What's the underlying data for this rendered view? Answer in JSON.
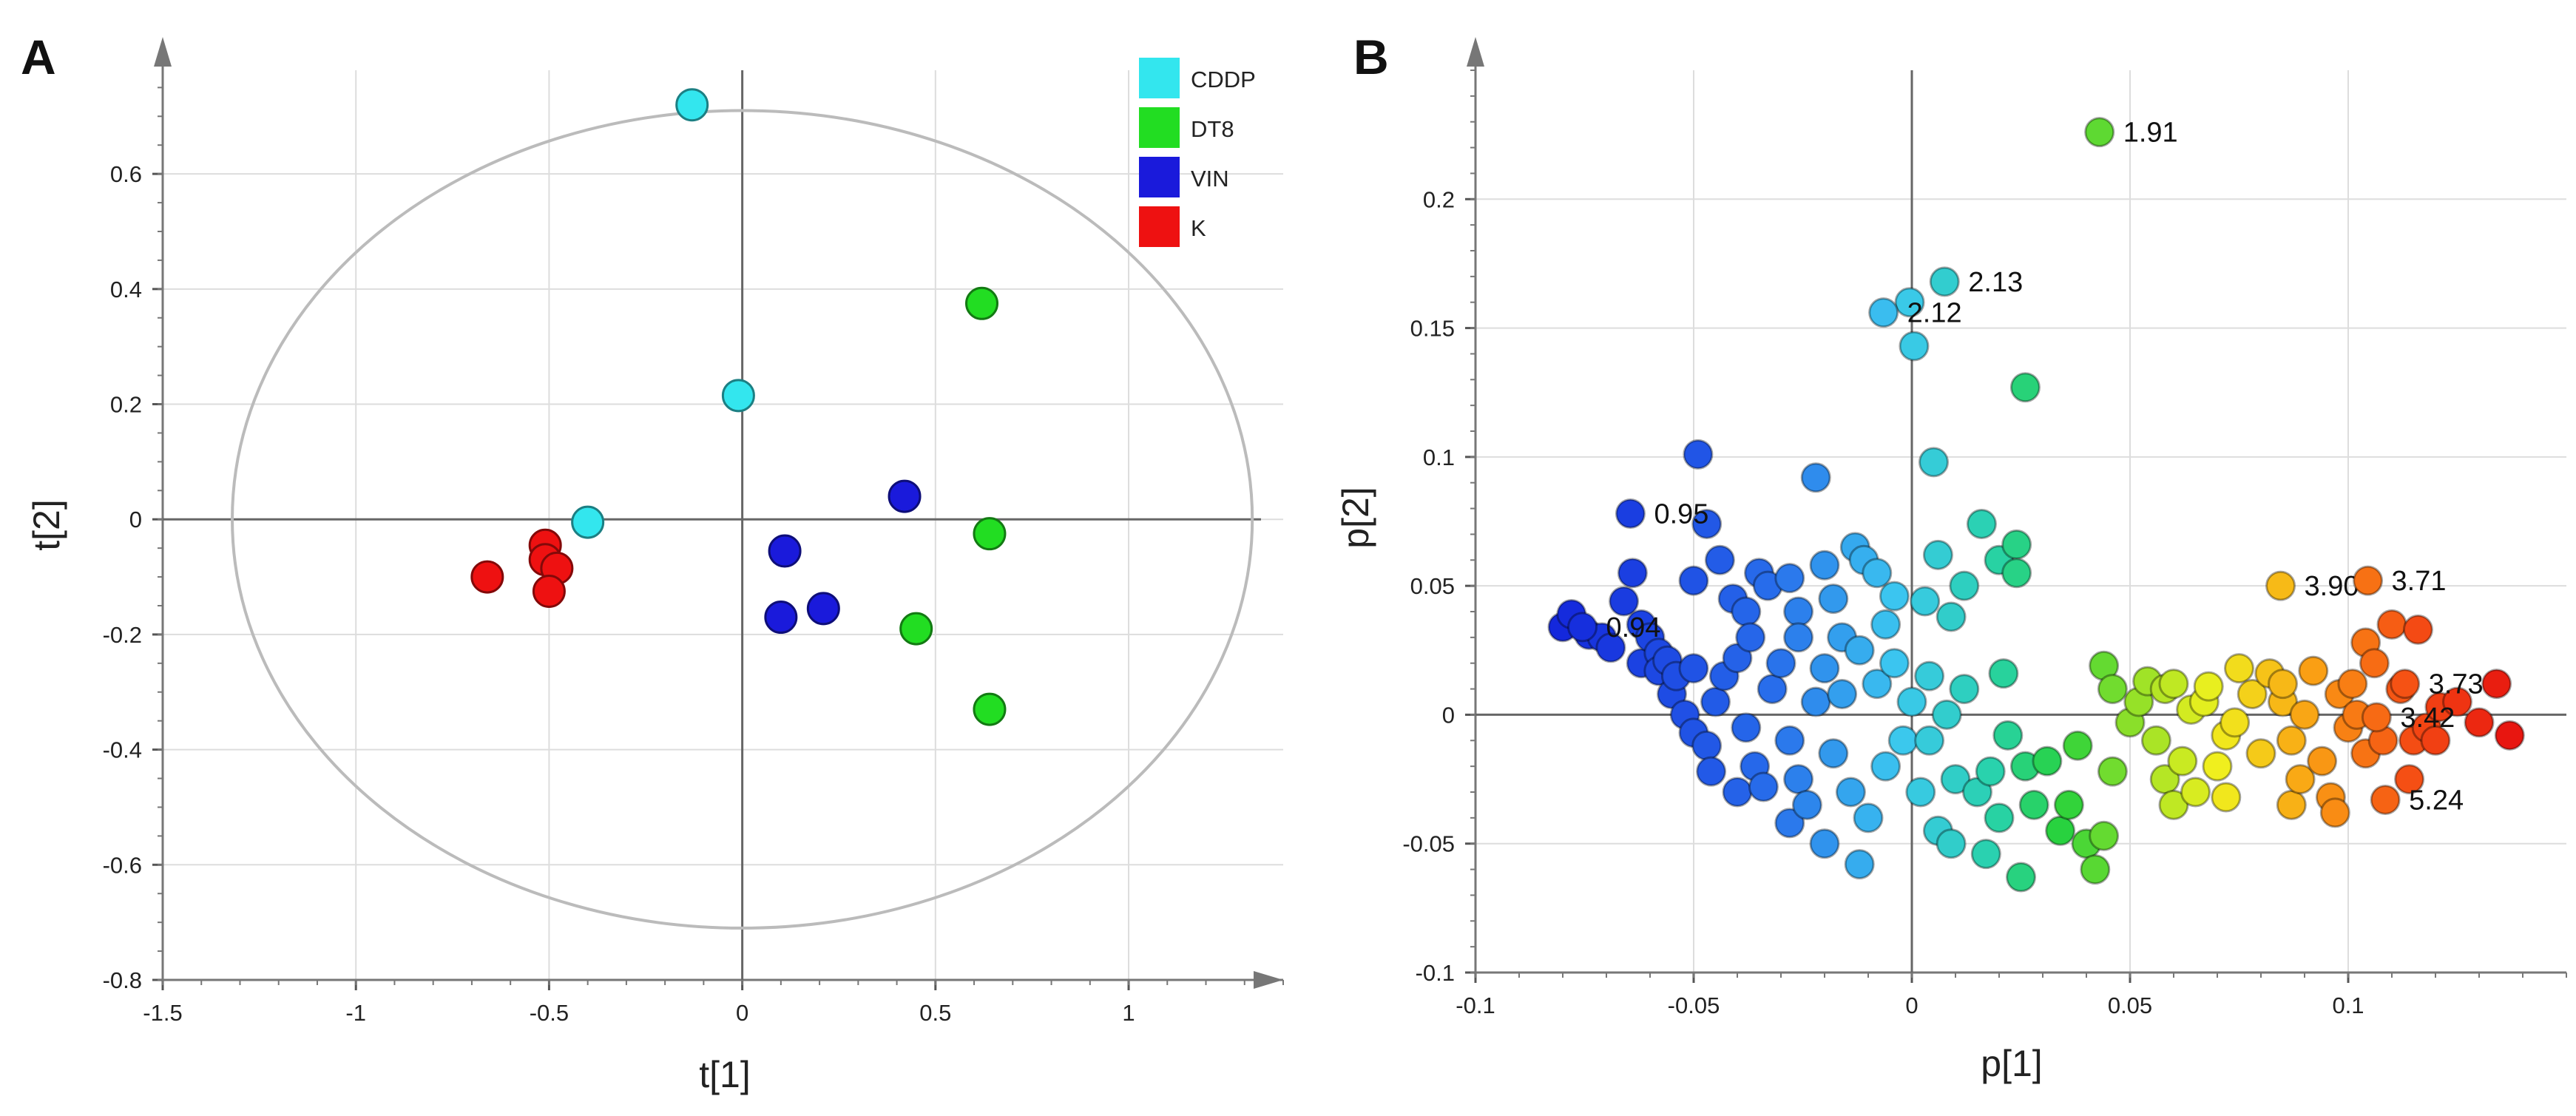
{
  "chart_data": [
    {
      "panel": "A",
      "type": "scatter",
      "xlabel": "t[1]",
      "ylabel": "t[2]",
      "xlim": [
        -1.5,
        1.4
      ],
      "ylim": [
        -0.8,
        0.78
      ],
      "xticks": [
        -1.5,
        -1,
        -0.5,
        0,
        0.5,
        1
      ],
      "yticks": [
        -0.8,
        -0.6,
        -0.4,
        -0.2,
        0,
        0.2,
        0.4,
        0.6
      ],
      "ellipse": {
        "cx": 0,
        "cy": 0,
        "rx": 1.32,
        "ry": 0.71
      },
      "grid": true,
      "legend_position": "top-right",
      "series": [
        {
          "name": "CDDP",
          "color": "#33e6ee",
          "points": [
            [
              -0.13,
              0.72
            ],
            [
              -0.01,
              0.215
            ],
            [
              -0.4,
              -0.005
            ]
          ]
        },
        {
          "name": "DT8",
          "color": "#22dd22",
          "points": [
            [
              0.62,
              0.375
            ],
            [
              0.64,
              -0.025
            ],
            [
              0.45,
              -0.19
            ],
            [
              0.64,
              -0.33
            ]
          ]
        },
        {
          "name": "VIN",
          "color": "#1a1adb",
          "points": [
            [
              0.42,
              0.04
            ],
            [
              0.11,
              -0.055
            ],
            [
              0.1,
              -0.17
            ],
            [
              0.21,
              -0.155
            ]
          ]
        },
        {
          "name": "K",
          "color": "#ee1111",
          "points": [
            [
              -0.66,
              -0.1
            ],
            [
              -0.51,
              -0.045
            ],
            [
              -0.51,
              -0.07
            ],
            [
              -0.48,
              -0.085
            ],
            [
              -0.5,
              -0.125
            ]
          ]
        }
      ]
    },
    {
      "panel": "B",
      "type": "scatter",
      "xlabel": "p[1]",
      "ylabel": "p[2]",
      "xlim": [
        -0.1,
        0.15
      ],
      "ylim": [
        -0.1,
        0.25
      ],
      "xticks": [
        -0.1,
        -0.05,
        0,
        0.05,
        0.1
      ],
      "yticks": [
        -0.1,
        -0.05,
        0,
        0.05,
        0.1,
        0.15,
        0.2
      ],
      "grid": true,
      "color_scale": "blue-cyan-green-yellow-red along p[1]",
      "labeled_points": [
        {
          "x": 0.043,
          "y": 0.226,
          "label": "1.91"
        },
        {
          "x": 0.0075,
          "y": 0.168,
          "label": "2.13"
        },
        {
          "x": -0.0065,
          "y": 0.156,
          "label": "2.12"
        },
        {
          "x": -0.0645,
          "y": 0.078,
          "label": "0.95"
        },
        {
          "x": -0.0755,
          "y": 0.034,
          "label": "0.94"
        },
        {
          "x": 0.0845,
          "y": 0.05,
          "label": "3.90"
        },
        {
          "x": 0.1045,
          "y": 0.052,
          "label": "3.71"
        },
        {
          "x": 0.113,
          "y": 0.012,
          "label": "3.73"
        },
        {
          "x": 0.1065,
          "y": -0.001,
          "label": "3.42"
        },
        {
          "x": 0.1085,
          "y": -0.033,
          "label": "5.24"
        }
      ],
      "points": [
        [
          -0.078,
          0.039
        ],
        [
          -0.08,
          0.034
        ],
        [
          -0.074,
          0.031
        ],
        [
          -0.071,
          0.03
        ],
        [
          -0.069,
          0.026
        ],
        [
          -0.066,
          0.044
        ],
        [
          -0.064,
          0.055
        ],
        [
          -0.062,
          0.035
        ],
        [
          -0.06,
          0.03
        ],
        [
          -0.058,
          0.024
        ],
        [
          -0.056,
          0.021
        ],
        [
          -0.054,
          0.015
        ],
        [
          -0.062,
          0.02
        ],
        [
          -0.05,
          0.052
        ],
        [
          -0.049,
          0.101
        ],
        [
          -0.047,
          0.074
        ],
        [
          -0.044,
          0.06
        ],
        [
          -0.041,
          0.045
        ],
        [
          -0.038,
          0.04
        ],
        [
          -0.035,
          0.055
        ],
        [
          -0.033,
          0.05
        ],
        [
          -0.028,
          0.053
        ],
        [
          -0.026,
          0.04
        ],
        [
          -0.022,
          0.092
        ],
        [
          -0.02,
          0.058
        ],
        [
          -0.018,
          0.045
        ],
        [
          -0.013,
          0.065
        ],
        [
          -0.011,
          0.06
        ],
        [
          -0.008,
          0.055
        ],
        [
          -0.004,
          0.046
        ],
        [
          0.003,
          0.044
        ],
        [
          0.006,
          0.062
        ],
        [
          0.009,
          0.038
        ],
        [
          0.012,
          0.05
        ],
        [
          0.016,
          0.074
        ],
        [
          0.02,
          0.06
        ],
        [
          0.024,
          0.066
        ],
        [
          0.024,
          0.055
        ],
        [
          0.026,
          0.127
        ],
        [
          0.021,
          0.016
        ],
        [
          0.005,
          0.098
        ],
        [
          0.0005,
          0.143
        ],
        [
          -0.0005,
          0.16
        ],
        [
          -0.058,
          0.017
        ],
        [
          -0.055,
          0.008
        ],
        [
          -0.052,
          0.0
        ],
        [
          -0.05,
          -0.007
        ],
        [
          -0.047,
          -0.012
        ],
        [
          -0.045,
          0.005
        ],
        [
          -0.043,
          0.015
        ],
        [
          -0.04,
          0.022
        ],
        [
          -0.038,
          -0.005
        ],
        [
          -0.036,
          -0.02
        ],
        [
          -0.034,
          -0.028
        ],
        [
          -0.032,
          0.01
        ],
        [
          -0.03,
          0.02
        ],
        [
          -0.028,
          -0.01
        ],
        [
          -0.026,
          -0.025
        ],
        [
          -0.024,
          -0.035
        ],
        [
          -0.022,
          0.005
        ],
        [
          -0.02,
          0.018
        ],
        [
          -0.018,
          -0.015
        ],
        [
          -0.016,
          0.03
        ],
        [
          -0.014,
          -0.03
        ],
        [
          -0.012,
          0.025
        ],
        [
          -0.01,
          -0.04
        ],
        [
          -0.008,
          0.012
        ],
        [
          -0.006,
          -0.02
        ],
        [
          -0.004,
          0.02
        ],
        [
          -0.002,
          -0.01
        ],
        [
          0.0,
          0.005
        ],
        [
          0.002,
          -0.03
        ],
        [
          0.004,
          0.015
        ],
        [
          0.006,
          -0.045
        ],
        [
          0.008,
          0.0
        ],
        [
          0.01,
          -0.025
        ],
        [
          -0.012,
          -0.058
        ],
        [
          -0.02,
          -0.05
        ],
        [
          -0.028,
          -0.042
        ],
        [
          -0.04,
          -0.03
        ],
        [
          -0.046,
          -0.022
        ],
        [
          -0.05,
          0.018
        ],
        [
          -0.037,
          0.03
        ],
        [
          -0.026,
          0.03
        ],
        [
          -0.016,
          0.008
        ],
        [
          -0.006,
          0.035
        ],
        [
          0.004,
          -0.01
        ],
        [
          0.012,
          0.01
        ],
        [
          0.015,
          -0.03
        ],
        [
          0.018,
          -0.022
        ],
        [
          0.02,
          -0.04
        ],
        [
          0.022,
          -0.008
        ],
        [
          0.026,
          -0.02
        ],
        [
          0.028,
          -0.035
        ],
        [
          0.031,
          -0.018
        ],
        [
          0.034,
          -0.045
        ],
        [
          0.036,
          -0.035
        ],
        [
          0.038,
          -0.012
        ],
        [
          0.04,
          -0.05
        ],
        [
          0.042,
          -0.06
        ],
        [
          0.025,
          -0.063
        ],
        [
          0.017,
          -0.054
        ],
        [
          0.009,
          -0.05
        ],
        [
          0.044,
          -0.047
        ],
        [
          0.046,
          -0.022
        ],
        [
          0.044,
          0.019
        ],
        [
          0.046,
          0.01
        ],
        [
          0.05,
          -0.003
        ],
        [
          0.052,
          0.005
        ],
        [
          0.054,
          0.013
        ],
        [
          0.056,
          -0.01
        ],
        [
          0.058,
          -0.025
        ],
        [
          0.06,
          0.012
        ],
        [
          0.062,
          -0.018
        ],
        [
          0.064,
          0.002
        ],
        [
          0.065,
          -0.03
        ],
        [
          0.068,
          0.011
        ],
        [
          0.07,
          -0.02
        ],
        [
          0.072,
          -0.008
        ],
        [
          0.074,
          -0.003
        ],
        [
          0.075,
          0.018
        ],
        [
          0.078,
          0.008
        ],
        [
          0.08,
          -0.015
        ],
        [
          0.082,
          0.016
        ],
        [
          0.085,
          0.005
        ],
        [
          0.087,
          -0.01
        ],
        [
          0.089,
          -0.025
        ],
        [
          0.09,
          0.0
        ],
        [
          0.092,
          0.017
        ],
        [
          0.094,
          -0.018
        ],
        [
          0.096,
          -0.032
        ],
        [
          0.098,
          0.008
        ],
        [
          0.1,
          -0.005
        ],
        [
          0.102,
          0.0
        ],
        [
          0.104,
          -0.015
        ],
        [
          0.106,
          0.02
        ],
        [
          0.108,
          -0.01
        ],
        [
          0.11,
          0.035
        ],
        [
          0.112,
          0.01
        ],
        [
          0.114,
          -0.025
        ],
        [
          0.116,
          0.033
        ],
        [
          0.118,
          -0.005
        ],
        [
          0.12,
          -0.01
        ],
        [
          0.125,
          0.005
        ],
        [
          0.13,
          -0.003
        ],
        [
          0.134,
          0.012
        ],
        [
          0.137,
          -0.008
        ],
        [
          0.097,
          -0.038
        ],
        [
          0.087,
          -0.035
        ],
        [
          0.072,
          -0.032
        ],
        [
          0.06,
          -0.035
        ],
        [
          0.058,
          0.01
        ],
        [
          0.067,
          0.005
        ],
        [
          0.085,
          0.012
        ],
        [
          0.104,
          0.028
        ],
        [
          0.101,
          0.012
        ],
        [
          0.115,
          -0.01
        ],
        [
          0.121,
          0.003
        ]
      ]
    }
  ]
}
